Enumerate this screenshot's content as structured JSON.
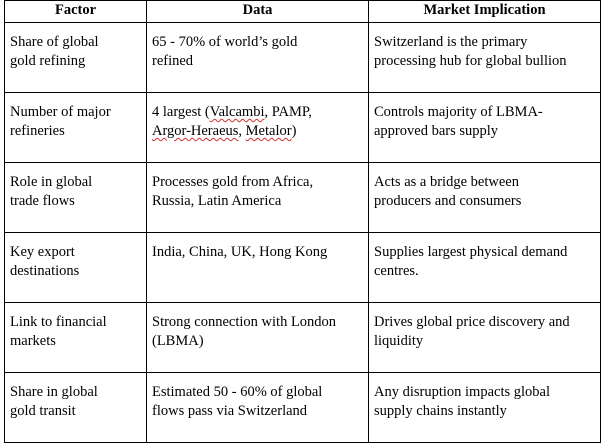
{
  "table": {
    "headers": [
      "Factor",
      "Data",
      "Market Implication"
    ],
    "rows": [
      {
        "factor": "Share of global\ngold refining",
        "data": " 65 - 70% of world’s gold\nrefined",
        "implication": "Switzerland is the primary\nprocessing hub for global bullion"
      },
      {
        "factor": "Number of major\nrefineries",
        "data_prefix": "4 largest (",
        "data_spell_1": "Valcambi",
        "data_mid": ", PAMP,\n",
        "data_spell_2": "Argor-Heraeus",
        "data_mid_2": ", ",
        "data_spell_3": "Metalor",
        "data_suffix": ")",
        "implication": "Controls majority of LBMA-\napproved bars supply"
      },
      {
        "factor": "Role in global\ntrade flows",
        "data": "Processes gold from Africa,\nRussia, Latin America",
        "implication": "Acts as a bridge between\nproducers and consumers"
      },
      {
        "factor": "Key export\ndestinations",
        "data": "India, China, UK, Hong Kong",
        "implication": "Supplies largest physical demand\ncentres."
      },
      {
        "factor": "Link to financial\nmarkets",
        "data": "Strong connection with London\n(LBMA)",
        "implication": "Drives global price discovery and\nliquidity"
      },
      {
        "factor": "Share in global\ngold transit",
        "data": "Estimated 50 - 60% of global\nflows pass via Switzerland",
        "implication": "Any disruption impacts global\nsupply chains instantly"
      }
    ]
  }
}
